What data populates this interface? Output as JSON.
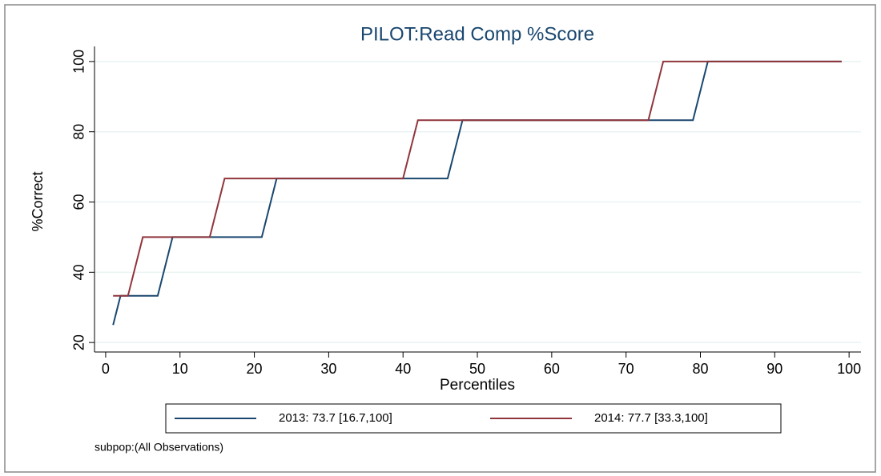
{
  "chart_data": {
    "type": "line",
    "title": "PILOT:Read Comp %Score",
    "xlabel": "Percentiles",
    "ylabel": "%Correct",
    "note": "subpop:(All Observations)",
    "xlim": [
      -1.5,
      101.6
    ],
    "xticks": [
      0,
      10,
      20,
      30,
      40,
      50,
      60,
      70,
      80,
      90,
      100
    ],
    "ylim": [
      17.3,
      104.3
    ],
    "yticks": [
      20,
      40,
      60,
      80,
      100
    ],
    "grid": true,
    "series": [
      {
        "name": "2013: 73.7 [16.7,100]",
        "color": "#1a476f",
        "x": [
          1,
          2,
          7,
          9,
          21,
          23,
          46,
          48,
          79,
          81,
          99
        ],
        "values": [
          25,
          33.3,
          33.3,
          50,
          50,
          66.7,
          66.7,
          83.3,
          83.3,
          100,
          100
        ]
      },
      {
        "name": "2014: 77.7 [33.3,100]",
        "color": "#90353b",
        "x": [
          1,
          3,
          5,
          14,
          16,
          40,
          42,
          73,
          75,
          99
        ],
        "values": [
          33.3,
          33.3,
          50,
          50,
          66.7,
          66.7,
          83.3,
          83.3,
          100,
          100
        ]
      }
    ]
  }
}
